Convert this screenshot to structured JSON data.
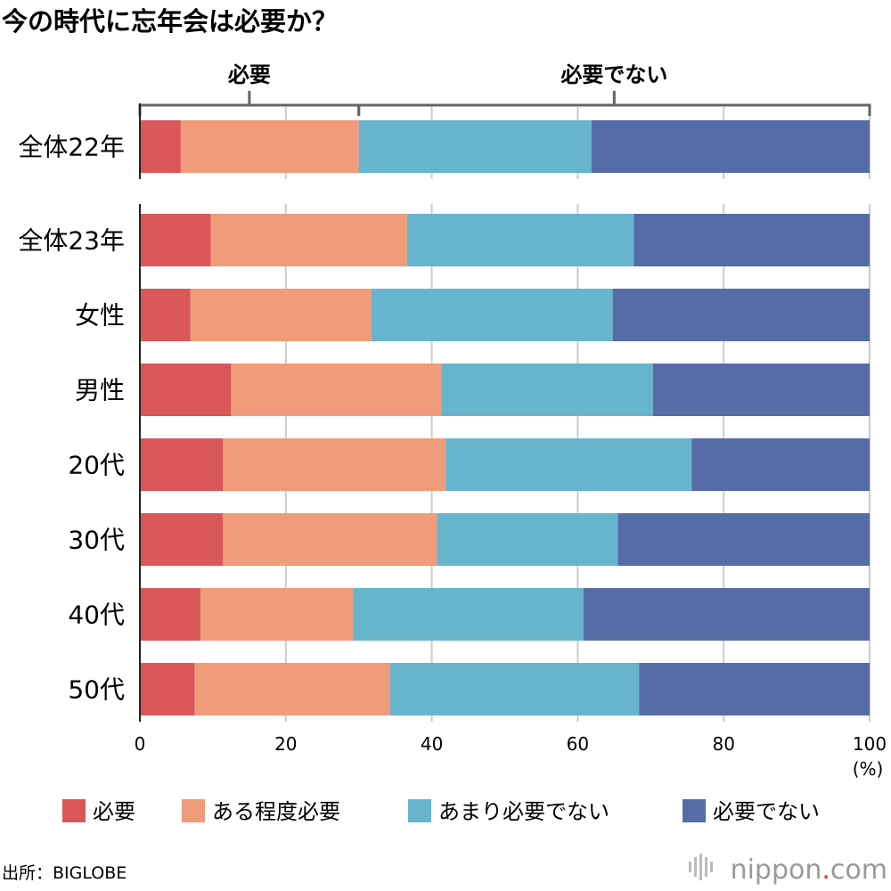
{
  "title": "今の時代に忘年会は必要か？",
  "chart_data": {
    "type": "bar",
    "orientation": "horizontal",
    "stacked": true,
    "title": "今の時代に忘年会は必要か？",
    "categories": [
      "全体22年",
      "全体23年",
      "女性",
      "男性",
      "20代",
      "30代",
      "40代",
      "50代"
    ],
    "series": [
      {
        "name": "必要",
        "color": "#d95758",
        "values": [
          5.6,
          9.7,
          6.9,
          12.5,
          11.4,
          11.4,
          8.3,
          7.5
        ]
      },
      {
        "name": "ある程度必要",
        "color": "#f09b7a",
        "values": [
          24.4,
          26.9,
          24.8,
          28.8,
          30.5,
          29.3,
          20.9,
          26.8
        ]
      },
      {
        "name": "あまり必要でない",
        "color": "#67b4cd",
        "values": [
          31.9,
          31.1,
          33.1,
          29.0,
          33.7,
          24.8,
          31.6,
          34.1
        ]
      },
      {
        "name": "必要でない",
        "color": "#566ca7",
        "values": [
          38.1,
          32.3,
          35.2,
          29.7,
          24.4,
          34.5,
          39.2,
          31.6
        ]
      }
    ],
    "xlim": [
      0,
      100
    ],
    "xticks": [
      "0",
      "20",
      "40",
      "60",
      "80",
      "100"
    ],
    "unit": "(%)",
    "grid": true,
    "legend_position": "bottom",
    "groups": [
      {
        "label": "必要",
        "from": 0,
        "to": 30
      },
      {
        "label": "必要でない",
        "from": 30,
        "to": 100
      }
    ]
  },
  "source": "出所：BIGLOBE",
  "brand": {
    "name": "nippon",
    "dot": ".",
    "suffix": "com"
  }
}
